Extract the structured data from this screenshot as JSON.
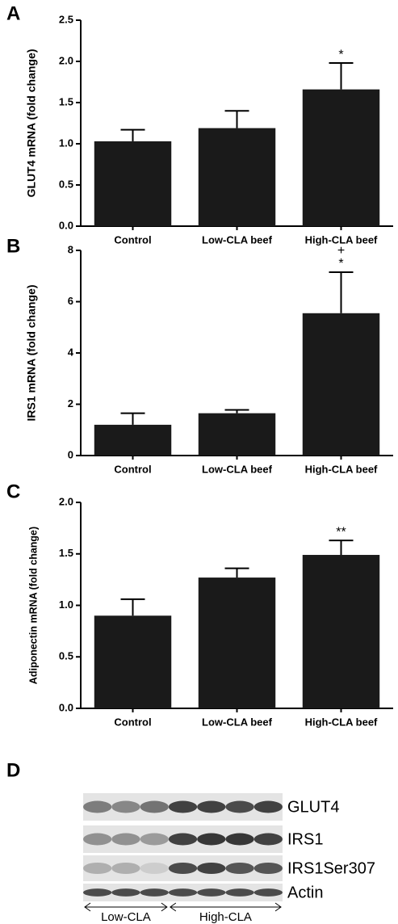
{
  "chart_data": [
    {
      "type": "bar",
      "panel_label": "A",
      "y_label": "GLUT4 mRNA (fold change)",
      "categories": [
        "Control",
        "Low-CLA beef",
        "High-CLA beef"
      ],
      "values": [
        1.03,
        1.19,
        1.66
      ],
      "errors": [
        0.14,
        0.21,
        0.32
      ],
      "annotations": [
        null,
        null,
        [
          "*"
        ]
      ],
      "color": "#1a1a1a",
      "ylim": [
        0,
        2.5
      ],
      "yticks": [
        {
          "value": 0,
          "label": "0.0"
        },
        {
          "value": 0.5,
          "label": "0.5"
        },
        {
          "value": 1,
          "label": "1.0"
        },
        {
          "value": 1.5,
          "label": "1.5"
        },
        {
          "value": 2,
          "label": "2.0"
        },
        {
          "value": 2.5,
          "label": "2.5"
        }
      ]
    },
    {
      "type": "bar",
      "panel_label": "B",
      "y_label": "IRS1 mRNA (fold change)",
      "categories": [
        "Control",
        "Low-CLA beef",
        "High-CLA beef"
      ],
      "values": [
        1.2,
        1.65,
        5.55
      ],
      "errors": [
        0.45,
        0.13,
        1.6
      ],
      "annotations": [
        null,
        null,
        [
          "+",
          "*"
        ]
      ],
      "color": "#1a1a1a",
      "ylim": [
        0,
        8
      ],
      "yticks": [
        0,
        2,
        4,
        6,
        8
      ]
    },
    {
      "type": "bar",
      "panel_label": "C",
      "y_label": "Adiponectin mRNA (fold change)",
      "categories": [
        "Control",
        "Low-CLA beef",
        "High-CLA beef"
      ],
      "values": [
        0.9,
        1.27,
        1.49
      ],
      "errors": [
        0.16,
        0.09,
        0.14
      ],
      "annotations": [
        null,
        null,
        [
          "**"
        ]
      ],
      "color": "#1a1a1a",
      "ylim": [
        0,
        2
      ],
      "yticks": [
        {
          "value": 0,
          "label": "0.0"
        },
        {
          "value": 0.5,
          "label": "0.5"
        },
        {
          "value": 1,
          "label": "1.0"
        },
        {
          "value": 1.5,
          "label": "1.5"
        },
        {
          "value": 2,
          "label": "2.0"
        }
      ]
    }
  ],
  "blot": {
    "panel_label": "D",
    "rows": [
      "GLUT4",
      "IRS1",
      "IRS1Ser307",
      "Actin"
    ],
    "groups": [
      "Low-CLA",
      "High-CLA"
    ]
  }
}
